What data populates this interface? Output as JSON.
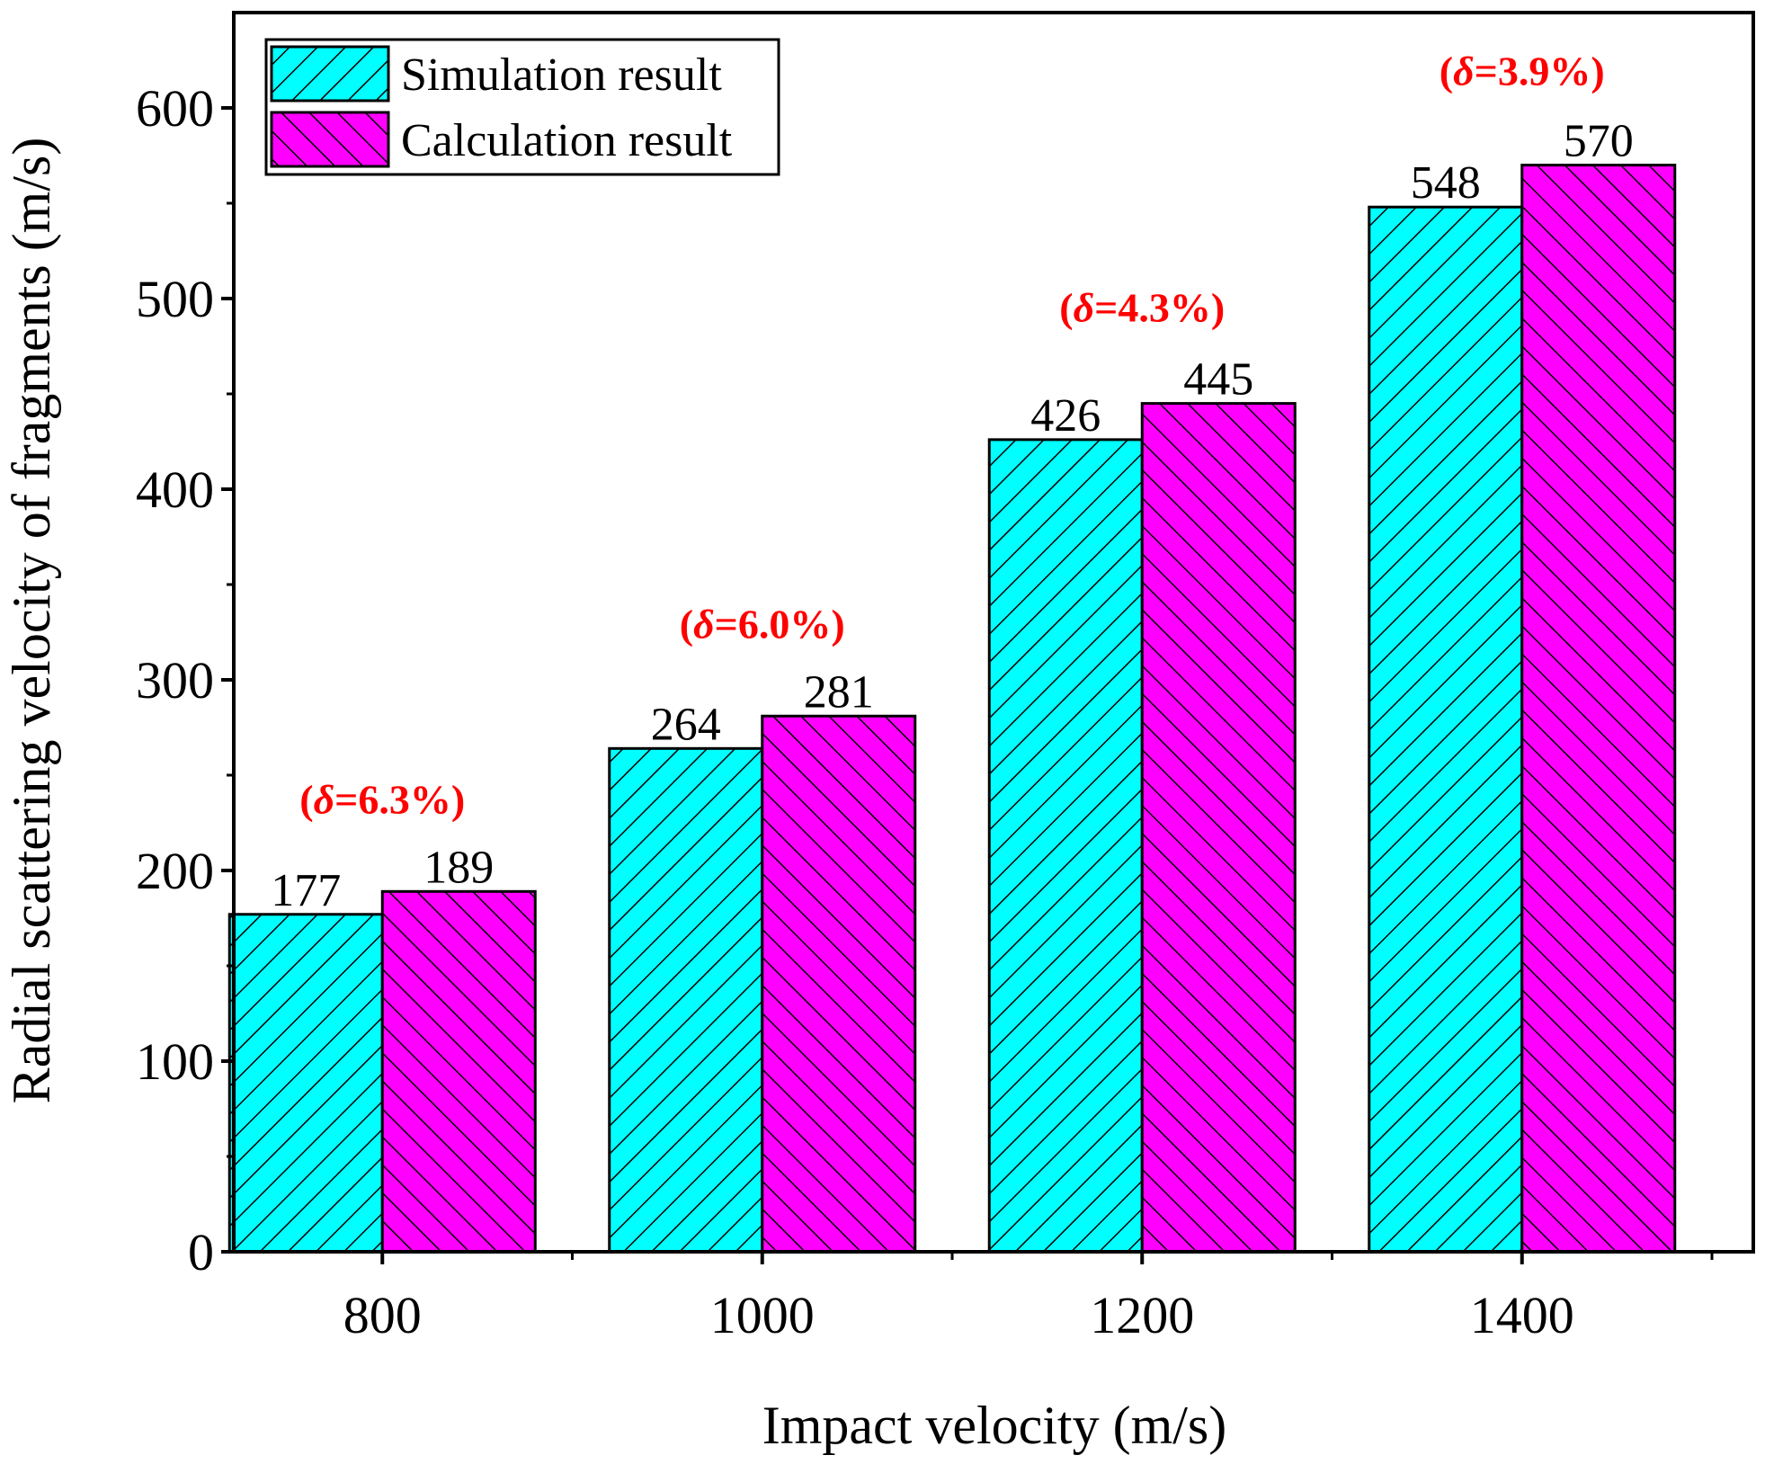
{
  "chart_data": {
    "type": "bar",
    "title": "",
    "xlabel": "Impact velocity (m/s)",
    "ylabel": "Radial scattering velocity of fragments (m/s)",
    "categories": [
      "800",
      "1000",
      "1200",
      "1400"
    ],
    "series": [
      {
        "name": "Simulation result",
        "values": [
          177,
          264,
          426,
          548
        ],
        "color": "#00ffff",
        "hatch": "forward-diagonal"
      },
      {
        "name": "Calculation result",
        "values": [
          189,
          281,
          445,
          570
        ],
        "color": "#ff00ff",
        "hatch": "back-diagonal"
      }
    ],
    "annotations": [
      {
        "prefix": "(",
        "symbol": "δ",
        "text": "=6.3%)",
        "category": "800",
        "y": 230
      },
      {
        "prefix": "(",
        "symbol": "δ",
        "text": "=6.0%)",
        "category": "1000",
        "y": 322
      },
      {
        "prefix": "(",
        "symbol": "δ",
        "text": "=4.3%)",
        "category": "1200",
        "y": 488
      },
      {
        "prefix": "(",
        "symbol": "δ",
        "text": "=3.9%)",
        "category": "1400",
        "y": 612
      }
    ],
    "ylim": [
      0,
      650
    ],
    "yticks": [
      0,
      100,
      200,
      300,
      400,
      500,
      600
    ],
    "ytick_labels": [
      "0",
      "100",
      "200",
      "300",
      "400",
      "500",
      "600"
    ],
    "legend_position": "top-left",
    "grid": false
  }
}
